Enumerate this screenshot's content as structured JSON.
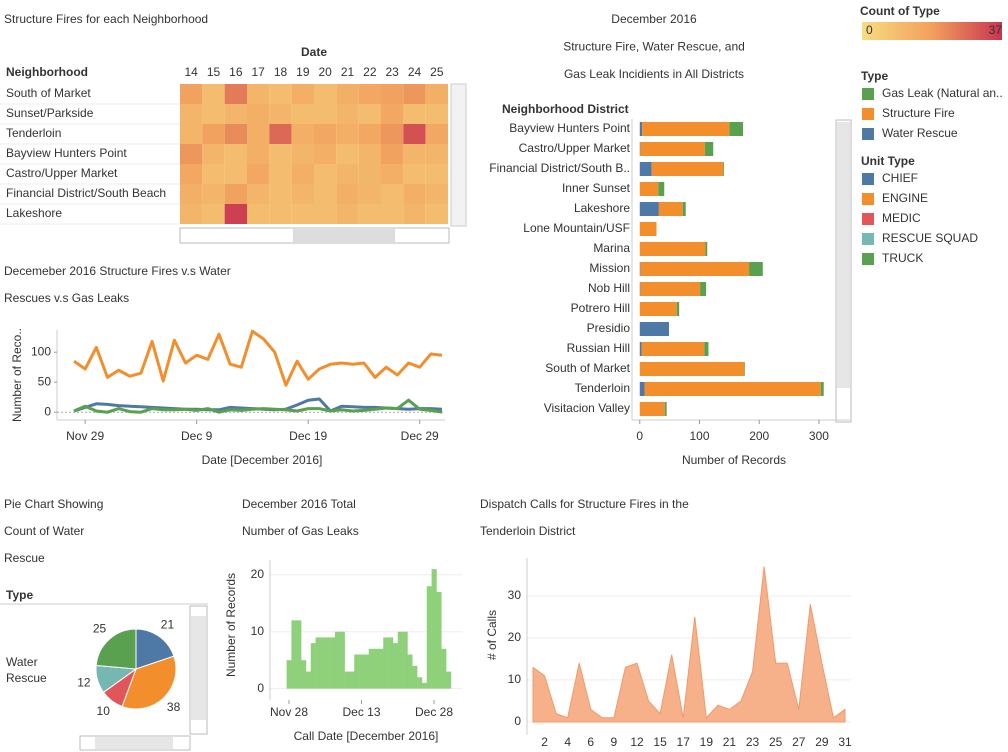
{
  "chart_data": [
    {
      "type": "heatmap",
      "title": [
        "Structure Fires for each Neighborhood"
      ],
      "x_header": "Date",
      "row_header": "Neighborhood",
      "categories": [
        14,
        15,
        16,
        17,
        18,
        19,
        20,
        21,
        22,
        23,
        24,
        25
      ],
      "rows": [
        "South of Market",
        "Sunset/Parkside",
        "Tenderloin",
        "Bayview Hunters Point",
        "Castro/Upper Market",
        "Financial District/South Beach",
        "Lakeshore"
      ],
      "values": [
        [
          18,
          10,
          25,
          12,
          10,
          14,
          10,
          14,
          16,
          18,
          20,
          14
        ],
        [
          12,
          10,
          12,
          14,
          12,
          10,
          10,
          12,
          10,
          16,
          10,
          10
        ],
        [
          12,
          18,
          22,
          14,
          28,
          14,
          16,
          14,
          16,
          20,
          32,
          16
        ],
        [
          20,
          12,
          10,
          14,
          10,
          12,
          14,
          10,
          12,
          18,
          12,
          12
        ],
        [
          16,
          10,
          10,
          16,
          10,
          14,
          10,
          12,
          12,
          14,
          10,
          10
        ],
        [
          14,
          12,
          18,
          12,
          10,
          12,
          10,
          14,
          12,
          10,
          14,
          12
        ],
        [
          12,
          10,
          35,
          10,
          10,
          10,
          10,
          12,
          10,
          10,
          12,
          10
        ]
      ],
      "legend_title": "Count of Type",
      "colorbar": [
        0,
        37
      ],
      "colors": [
        "#f8dc80",
        "#f1a05e",
        "#c8344f"
      ]
    },
    {
      "type": "line",
      "title": [
        "Decemeber 2016 Structure Fires v.s Water",
        "Rescues v.s Gas Leaks"
      ],
      "y_label": "Number of Reco..",
      "x_label": "Date [December 2016]",
      "x": [
        "Nov 28",
        "Nov 29",
        "Nov 30",
        "Dec 1",
        "Dec 2",
        "Dec 3",
        "Dec 4",
        "Dec 5",
        "Dec 6",
        "Dec 7",
        "Dec 8",
        "Dec 9",
        "Dec 10",
        "Dec 11",
        "Dec 12",
        "Dec 13",
        "Dec 14",
        "Dec 15",
        "Dec 16",
        "Dec 17",
        "Dec 18",
        "Dec 19",
        "Dec 20",
        "Dec 21",
        "Dec 22",
        "Dec 23",
        "Dec 24",
        "Dec 25",
        "Dec 26",
        "Dec 27",
        "Dec 28",
        "Dec 29",
        "Dec 30",
        "Dec 31"
      ],
      "xticks": [
        "Nov 29",
        "Dec 9",
        "Dec 19",
        "Dec 29"
      ],
      "ylim": [
        -13,
        137
      ],
      "yticks": [
        0,
        50,
        100
      ],
      "series": [
        {
          "color": "#f28e2b",
          "values": [
            85,
            72,
            108,
            58,
            70,
            60,
            65,
            118,
            52,
            120,
            82,
            95,
            88,
            130,
            80,
            75,
            135,
            122,
            100,
            45,
            85,
            55,
            72,
            80,
            82,
            80,
            82,
            58,
            75,
            62,
            82,
            75,
            97,
            95
          ]
        },
        {
          "color": "#4e79a7",
          "values": [
            2,
            8,
            14,
            13,
            11,
            10,
            9,
            8,
            7,
            6,
            5,
            5,
            4,
            4,
            8,
            7,
            6,
            5,
            4,
            5,
            12,
            20,
            22,
            2,
            10,
            9,
            8,
            8,
            7,
            6,
            5,
            6,
            6,
            5
          ]
        },
        {
          "color": "#59a14f",
          "values": [
            2,
            10,
            2,
            0,
            6,
            1,
            0,
            6,
            4,
            4,
            5,
            3,
            6,
            0,
            4,
            3,
            5,
            6,
            5,
            4,
            2,
            6,
            6,
            2,
            4,
            2,
            3,
            5,
            7,
            6,
            20,
            5,
            3,
            0
          ]
        }
      ]
    },
    {
      "type": "bar",
      "orientation": "horizontal",
      "stacked": true,
      "title": [
        "December 2016",
        "Structure Fire, Water Rescue, and",
        "Gas Leak Incidients in All Districts"
      ],
      "row_header": "Neighborhood  District",
      "x_label": "Number of Records",
      "categories": [
        "Bayview Hunters Point",
        "Castro/Upper Market",
        "Financial District/South B..",
        "Inner Sunset",
        "Lakeshore",
        "Lone Mountain/USF",
        "Marina",
        "Mission",
        "Nob Hill",
        "Potrero Hill",
        "Presidio",
        "Russian Hill",
        "South of Market",
        "Tenderloin",
        "Visitacion Valley"
      ],
      "xlim": [
        -13,
        352
      ],
      "xticks": [
        0,
        100,
        200,
        300
      ],
      "legend_title": "Type",
      "series": [
        {
          "name": "Gas Leak (Natural an..",
          "color": "#59a14f",
          "values": [
            23,
            14,
            1,
            10,
            5,
            0,
            3,
            23,
            10,
            4,
            0,
            7,
            1,
            5,
            3
          ]
        },
        {
          "name": "Structure Fire",
          "color": "#f28e2b",
          "values": [
            146,
            108,
            120,
            31,
            40,
            28,
            110,
            182,
            100,
            62,
            0,
            105,
            175,
            295,
            42
          ]
        },
        {
          "name": "Water Rescue",
          "color": "#4e79a7",
          "values": [
            4,
            1,
            20,
            0,
            32,
            0,
            0,
            1,
            1,
            0,
            49,
            3,
            0,
            8,
            0
          ]
        }
      ]
    },
    {
      "type": "pie",
      "title": [
        "Pie Chart Showing",
        "Count of Water",
        "Rescue"
      ],
      "row_header": "Type",
      "row_label": "Water Rescue",
      "legend_title": "Unit Type",
      "categories": [
        "CHIEF",
        "ENGINE",
        "MEDIC",
        "RESCUE SQUAD",
        "TRUCK"
      ],
      "values": [
        21,
        38,
        10,
        12,
        25
      ],
      "colors": [
        "#4e79a7",
        "#f28e2b",
        "#e15759",
        "#76b7b2",
        "#59a14f"
      ]
    },
    {
      "type": "bar",
      "orientation": "vertical",
      "title": [
        "December 2016 Total",
        "Number of Gas Leaks"
      ],
      "y_label": "Number of Records",
      "x_label": "Call Date [December 2016]",
      "x": [
        "Nov 28",
        "Nov 29",
        "Nov 30",
        "Dec 1",
        "Dec 2",
        "Dec 3",
        "Dec 4",
        "Dec 5",
        "Dec 6",
        "Dec 7",
        "Dec 8",
        "Dec 9",
        "Dec 10",
        "Dec 11",
        "Dec 12",
        "Dec 13",
        "Dec 14",
        "Dec 15",
        "Dec 16",
        "Dec 17",
        "Dec 18",
        "Dec 19",
        "Dec 20",
        "Dec 21",
        "Dec 22",
        "Dec 23",
        "Dec 24",
        "Dec 25",
        "Dec 26",
        "Dec 27",
        "Dec 28",
        "Dec 29",
        "Dec 30",
        "Dec 31"
      ],
      "values": [
        5,
        12,
        12,
        5,
        3,
        8,
        9,
        9,
        9,
        9,
        10,
        10,
        3,
        3,
        6,
        6,
        6,
        7,
        7,
        7,
        9,
        9,
        8,
        10,
        10,
        6,
        4,
        2,
        1,
        18,
        21,
        17,
        7,
        3
      ],
      "xticks": [
        "Nov 28",
        "Dec 13",
        "Dec 28"
      ],
      "ylim": [
        -2,
        22.6
      ],
      "yticks": [
        0,
        10,
        20
      ],
      "color": "#8fd17a",
      "grid": true
    },
    {
      "type": "area",
      "title": [
        "Dispatch Calls for Structure Fires in the",
        "Tenderloin District"
      ],
      "y_label": "# of Calls",
      "categories": [
        null,
        2,
        null,
        4,
        null,
        6,
        null,
        9,
        null,
        12,
        null,
        15,
        null,
        17,
        null,
        19,
        null,
        21,
        null,
        23,
        null,
        25,
        null,
        27,
        null,
        29,
        null,
        31
      ],
      "values": [
        13,
        11,
        2,
        1,
        14,
        3,
        1,
        1,
        13,
        14,
        5,
        2,
        16,
        1,
        25,
        1,
        4,
        3,
        5,
        12,
        37,
        14,
        14,
        3,
        28,
        14,
        1,
        3
      ],
      "ylim": [
        -3.1,
        39
      ],
      "yticks": [
        0,
        10,
        20,
        30
      ],
      "color": "#f6b08a",
      "grid": true
    }
  ]
}
